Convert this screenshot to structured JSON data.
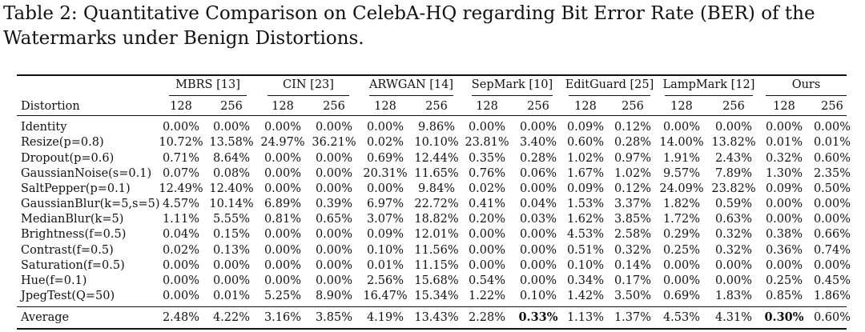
{
  "caption": "Table 2: Quantitative Comparison on CelebA-HQ regarding Bit Error Rate (BER) of the Watermarks under Benign Distortions.",
  "table": {
    "first_col_header": "Distortion",
    "methods": [
      "MBRS [13]",
      "CIN [23]",
      "ARWGAN [14]",
      "SepMark [10]",
      "EditGuard [25]",
      "LampMark [12]",
      "Ours"
    ],
    "sizes": [
      "128",
      "256"
    ],
    "rows": [
      {
        "name": "Identity",
        "values": [
          "0.00%",
          "0.00%",
          "0.00%",
          "0.00%",
          "0.00%",
          "9.86%",
          "0.00%",
          "0.00%",
          "0.09%",
          "0.12%",
          "0.00%",
          "0.00%",
          "0.00%",
          "0.00%"
        ]
      },
      {
        "name": "Resize(p=0.8)",
        "values": [
          "10.72%",
          "13.58%",
          "24.97%",
          "36.21%",
          "0.02%",
          "10.10%",
          "23.81%",
          "3.40%",
          "0.60%",
          "0.28%",
          "14.00%",
          "13.82%",
          "0.01%",
          "0.01%"
        ]
      },
      {
        "name": "Dropout(p=0.6)",
        "values": [
          "0.71%",
          "8.64%",
          "0.00%",
          "0.00%",
          "0.69%",
          "12.44%",
          "0.35%",
          "0.28%",
          "1.02%",
          "0.97%",
          "1.91%",
          "2.43%",
          "0.32%",
          "0.60%"
        ]
      },
      {
        "name": "GaussianNoise(s=0.1)",
        "values": [
          "0.07%",
          "0.08%",
          "0.00%",
          "0.00%",
          "20.31%",
          "11.65%",
          "0.76%",
          "0.06%",
          "1.67%",
          "1.02%",
          "9.57%",
          "7.89%",
          "1.30%",
          "2.35%"
        ]
      },
      {
        "name": "SaltPepper(p=0.1)",
        "values": [
          "12.49%",
          "12.40%",
          "0.00%",
          "0.00%",
          "0.00%",
          "9.84%",
          "0.02%",
          "0.00%",
          "0.09%",
          "0.12%",
          "24.09%",
          "23.82%",
          "0.09%",
          "0.50%"
        ]
      },
      {
        "name": "GaussianBlur(k=5,s=5)",
        "values": [
          "4.57%",
          "10.14%",
          "6.89%",
          "0.39%",
          "6.97%",
          "22.72%",
          "0.41%",
          "0.04%",
          "1.53%",
          "3.37%",
          "1.82%",
          "0.59%",
          "0.00%",
          "0.00%"
        ]
      },
      {
        "name": "MedianBlur(k=5)",
        "values": [
          "1.11%",
          "5.55%",
          "0.81%",
          "0.65%",
          "3.07%",
          "18.82%",
          "0.20%",
          "0.03%",
          "1.62%",
          "3.85%",
          "1.72%",
          "0.63%",
          "0.00%",
          "0.00%"
        ]
      },
      {
        "name": "Brightness(f=0.5)",
        "values": [
          "0.04%",
          "0.15%",
          "0.00%",
          "0.00%",
          "0.09%",
          "12.01%",
          "0.00%",
          "0.00%",
          "4.53%",
          "2.58%",
          "0.29%",
          "0.32%",
          "0.38%",
          "0.66%"
        ]
      },
      {
        "name": "Contrast(f=0.5)",
        "values": [
          "0.02%",
          "0.13%",
          "0.00%",
          "0.00%",
          "0.10%",
          "11.56%",
          "0.00%",
          "0.00%",
          "0.51%",
          "0.32%",
          "0.25%",
          "0.32%",
          "0.36%",
          "0.74%"
        ]
      },
      {
        "name": "Saturation(f=0.5)",
        "values": [
          "0.00%",
          "0.00%",
          "0.00%",
          "0.00%",
          "0.01%",
          "11.15%",
          "0.00%",
          "0.00%",
          "0.10%",
          "0.14%",
          "0.00%",
          "0.00%",
          "0.00%",
          "0.00%"
        ]
      },
      {
        "name": "Hue(f=0.1)",
        "values": [
          "0.00%",
          "0.00%",
          "0.00%",
          "0.00%",
          "2.56%",
          "15.68%",
          "0.54%",
          "0.00%",
          "0.34%",
          "0.17%",
          "0.00%",
          "0.00%",
          "0.25%",
          "0.45%"
        ]
      },
      {
        "name": "JpegTest(Q=50)",
        "values": [
          "0.00%",
          "0.01%",
          "5.25%",
          "8.90%",
          "16.47%",
          "15.34%",
          "1.22%",
          "0.10%",
          "1.42%",
          "3.50%",
          "0.69%",
          "1.83%",
          "0.85%",
          "1.86%"
        ]
      }
    ],
    "average": {
      "name": "Average",
      "values": [
        "2.48%",
        "4.22%",
        "3.16%",
        "3.85%",
        "4.19%",
        "13.43%",
        "2.28%",
        "0.33%",
        "1.13%",
        "1.37%",
        "4.53%",
        "4.31%",
        "0.30%",
        "0.60%"
      ],
      "bold_indices": [
        7,
        12
      ]
    }
  }
}
